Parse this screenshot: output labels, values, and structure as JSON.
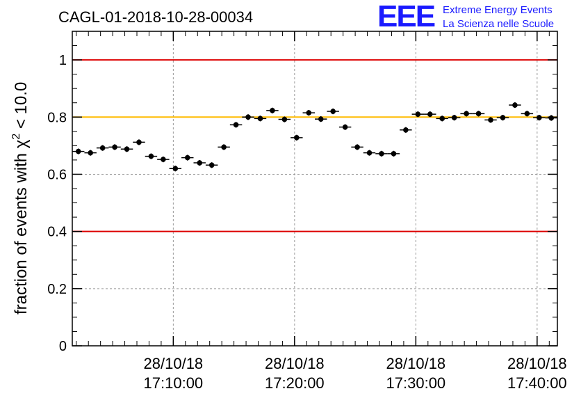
{
  "chart_data": {
    "type": "scatter",
    "title": "CAGL-01-2018-10-28-00034",
    "ylabel": "fraction of events with χ² < 10.0",
    "ylabel_parts": {
      "main": "fraction of events with χ",
      "sup": "2",
      "tail": " < 10.0"
    },
    "xlabel": "",
    "ylim": [
      0,
      1.1
    ],
    "xlim_minutes": [
      0,
      40
    ],
    "yticks": [
      0,
      0.2,
      0.4,
      0.6,
      0.8,
      1
    ],
    "ytick_labels": [
      "0",
      "0.2",
      "0.4",
      "0.6",
      "0.8",
      "1"
    ],
    "xticks": [
      {
        "minute": 8.33,
        "date": "28/10/18",
        "time": "17:10:00"
      },
      {
        "minute": 18.33,
        "date": "28/10/18",
        "time": "17:20:00"
      },
      {
        "minute": 28.33,
        "date": "28/10/18",
        "time": "17:30:00"
      },
      {
        "minute": 38.33,
        "date": "28/10/18",
        "time": "17:40:00"
      }
    ],
    "grid": true,
    "reference_lines": [
      {
        "y": 1.0,
        "color": "#dd0000"
      },
      {
        "y": 0.8,
        "color": "#ffbb00"
      },
      {
        "y": 0.4,
        "color": "#dd0000"
      }
    ],
    "series": [
      {
        "x_minutes": [
          0.5,
          1.5,
          2.5,
          3.5,
          4.5,
          5.5,
          6.5,
          7.5,
          8.5,
          9.5,
          10.5,
          11.5,
          12.5,
          13.5,
          14.5,
          15.5,
          16.5,
          17.5,
          18.5,
          19.5,
          20.5,
          21.5,
          22.5,
          23.5,
          24.5,
          25.5,
          26.5,
          27.5,
          28.5,
          29.5,
          30.5,
          31.5,
          32.5,
          33.5,
          34.5,
          35.5,
          36.5,
          37.5,
          38.5,
          39.5
        ],
        "y": [
          0.68,
          0.675,
          0.692,
          0.695,
          0.688,
          0.712,
          0.663,
          0.652,
          0.62,
          0.658,
          0.64,
          0.632,
          0.695,
          0.773,
          0.8,
          0.795,
          0.823,
          0.792,
          0.728,
          0.815,
          0.793,
          0.82,
          0.765,
          0.695,
          0.675,
          0.672,
          0.672,
          0.755,
          0.81,
          0.81,
          0.795,
          0.798,
          0.812,
          0.812,
          0.79,
          0.798,
          0.842,
          0.812,
          0.798,
          0.797
        ],
        "yerr": 0.01,
        "color": "#000000"
      }
    ]
  },
  "logo": {
    "mark": "EEE",
    "line1": "Extreme Energy Events",
    "line2": "La Scienza nelle Scuole"
  }
}
